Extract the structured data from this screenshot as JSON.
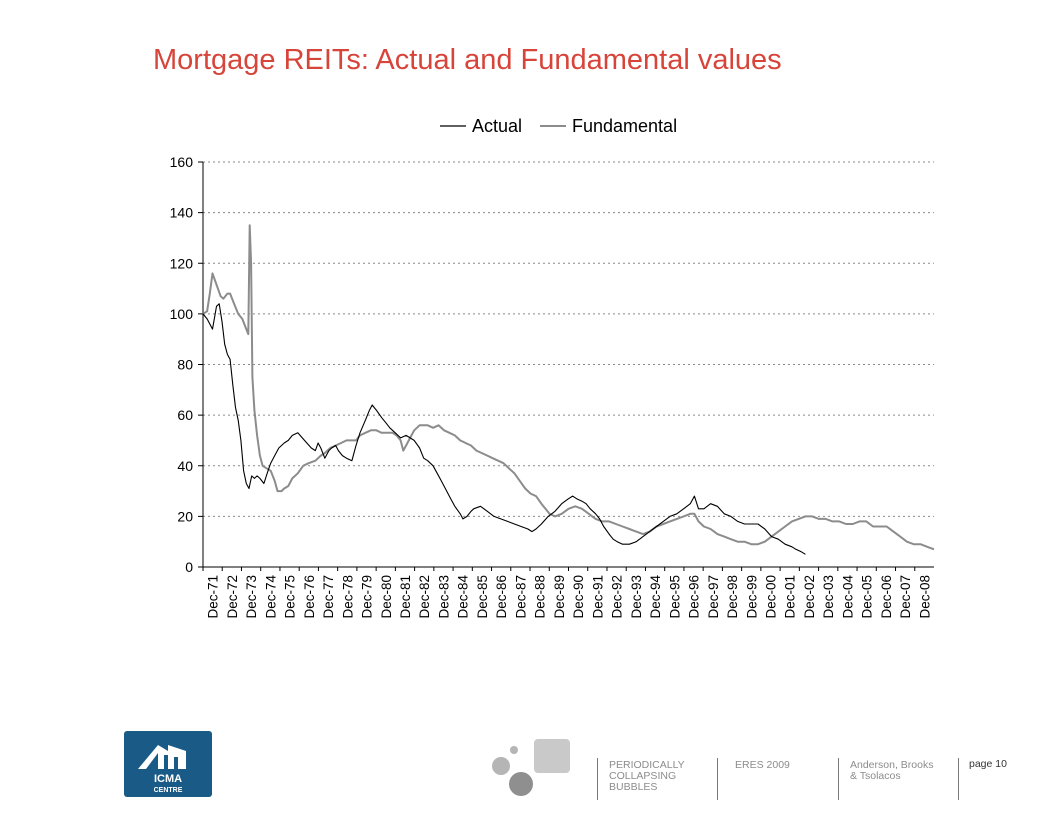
{
  "slide": {
    "title": "Mortgage REITs: Actual and Fundamental values",
    "title_color": "#d7443a"
  },
  "chart_data": {
    "type": "line",
    "title": "",
    "xlabel": "",
    "ylabel": "",
    "ylim": [
      0,
      160
    ],
    "yticks": [
      0,
      20,
      40,
      60,
      80,
      100,
      120,
      140,
      160
    ],
    "grid": "horizontal dotted",
    "legend": "top-center",
    "categories": [
      "Dec-71",
      "Dec-72",
      "Dec-73",
      "Dec-74",
      "Dec-75",
      "Dec-76",
      "Dec-77",
      "Dec-78",
      "Dec-79",
      "Dec-80",
      "Dec-81",
      "Dec-82",
      "Dec-83",
      "Dec-84",
      "Dec-85",
      "Dec-86",
      "Dec-87",
      "Dec-88",
      "Dec-89",
      "Dec-90",
      "Dec-91",
      "Dec-92",
      "Dec-93",
      "Dec-94",
      "Dec-95",
      "Dec-96",
      "Dec-97",
      "Dec-98",
      "Dec-99",
      "Dec-00",
      "Dec-01",
      "Dec-02",
      "Dec-03",
      "Dec-04",
      "Dec-05",
      "Dec-06",
      "Dec-07",
      "Dec-08"
    ],
    "series": [
      {
        "name": "Actual",
        "color": "#000000",
        "points": [
          [
            0,
            100
          ],
          [
            0.3,
            98
          ],
          [
            0.5,
            96
          ],
          [
            0.7,
            94
          ],
          [
            1.0,
            103
          ],
          [
            1.2,
            104
          ],
          [
            1.4,
            97
          ],
          [
            1.6,
            88
          ],
          [
            1.8,
            84
          ],
          [
            2.0,
            82
          ],
          [
            2.2,
            72
          ],
          [
            2.4,
            63
          ],
          [
            2.6,
            58
          ],
          [
            2.8,
            50
          ],
          [
            3.0,
            38
          ],
          [
            3.2,
            33
          ],
          [
            3.4,
            31
          ],
          [
            3.6,
            36
          ],
          [
            3.8,
            35
          ],
          [
            4.0,
            36
          ],
          [
            4.2,
            35
          ],
          [
            4.5,
            33
          ],
          [
            4.8,
            38
          ],
          [
            5.0,
            41
          ],
          [
            5.3,
            44
          ],
          [
            5.6,
            47
          ],
          [
            6.0,
            49
          ],
          [
            6.3,
            50
          ],
          [
            6.6,
            52
          ],
          [
            7.0,
            53
          ],
          [
            7.5,
            50
          ],
          [
            8.0,
            47
          ],
          [
            8.3,
            46
          ],
          [
            8.5,
            49
          ],
          [
            8.7,
            47
          ],
          [
            9.0,
            43
          ],
          [
            9.3,
            46
          ],
          [
            9.5,
            47
          ],
          [
            9.8,
            48
          ],
          [
            10.0,
            46
          ],
          [
            10.3,
            44
          ],
          [
            10.6,
            43
          ],
          [
            11.0,
            42
          ],
          [
            11.3,
            48
          ],
          [
            11.6,
            53
          ],
          [
            12.0,
            58
          ],
          [
            12.3,
            62
          ],
          [
            12.5,
            64
          ],
          [
            12.8,
            62
          ],
          [
            13.2,
            59
          ],
          [
            13.5,
            57
          ],
          [
            13.8,
            55
          ],
          [
            14.2,
            53
          ],
          [
            14.6,
            51
          ],
          [
            15.0,
            52
          ],
          [
            15.3,
            51
          ],
          [
            15.6,
            50
          ],
          [
            16.0,
            47
          ],
          [
            16.3,
            43
          ],
          [
            16.6,
            42
          ],
          [
            17.0,
            40
          ],
          [
            17.3,
            37
          ],
          [
            17.6,
            34
          ],
          [
            18.0,
            30
          ],
          [
            18.3,
            27
          ],
          [
            18.6,
            24
          ],
          [
            19.0,
            21
          ],
          [
            19.2,
            19
          ],
          [
            19.5,
            20
          ],
          [
            19.8,
            22
          ],
          [
            20.0,
            23
          ],
          [
            20.5,
            24
          ],
          [
            21.0,
            22
          ],
          [
            21.5,
            20
          ],
          [
            22.0,
            19
          ],
          [
            22.5,
            18
          ],
          [
            23.0,
            17
          ],
          [
            23.5,
            16
          ],
          [
            24.0,
            15
          ],
          [
            24.3,
            14
          ],
          [
            24.6,
            15
          ],
          [
            25.0,
            17
          ],
          [
            25.5,
            20
          ],
          [
            26.0,
            22
          ],
          [
            26.5,
            25
          ],
          [
            27.0,
            27
          ],
          [
            27.3,
            28
          ],
          [
            27.6,
            27
          ],
          [
            28.0,
            26
          ],
          [
            28.3,
            25
          ],
          [
            28.6,
            23
          ],
          [
            29.0,
            21
          ],
          [
            29.3,
            19
          ],
          [
            29.6,
            16
          ],
          [
            30.0,
            13
          ],
          [
            30.3,
            11
          ],
          [
            30.6,
            10
          ],
          [
            31.0,
            9
          ],
          [
            31.5,
            9
          ],
          [
            32.0,
            10
          ],
          [
            32.5,
            12
          ],
          [
            33.0,
            14
          ],
          [
            33.5,
            16
          ],
          [
            34.0,
            18
          ],
          [
            34.5,
            20
          ],
          [
            35.0,
            21
          ],
          [
            35.5,
            23
          ],
          [
            36.0,
            25
          ],
          [
            36.3,
            28
          ],
          [
            36.6,
            23
          ],
          [
            37.0,
            23
          ],
          [
            37.5,
            25
          ],
          [
            38.0,
            24
          ],
          [
            38.5,
            21
          ],
          [
            39.0,
            20
          ],
          [
            39.5,
            18
          ],
          [
            40.0,
            17
          ],
          [
            40.5,
            17
          ],
          [
            41.0,
            17
          ],
          [
            41.5,
            15
          ],
          [
            42.0,
            12
          ],
          [
            42.5,
            11
          ],
          [
            43.0,
            9
          ],
          [
            43.5,
            8
          ],
          [
            43.8,
            7
          ],
          [
            44.2,
            6
          ],
          [
            44.5,
            5
          ]
        ]
      },
      {
        "name": "Fundamental",
        "color": "#8c8c8c",
        "points": [
          [
            0,
            100
          ],
          [
            0.3,
            101
          ],
          [
            0.5,
            108
          ],
          [
            0.7,
            116
          ],
          [
            0.9,
            113
          ],
          [
            1.1,
            110
          ],
          [
            1.3,
            107
          ],
          [
            1.5,
            106
          ],
          [
            1.8,
            108
          ],
          [
            2.0,
            108
          ],
          [
            2.3,
            104
          ],
          [
            2.6,
            100
          ],
          [
            2.9,
            98
          ],
          [
            3.2,
            94
          ],
          [
            3.35,
            92
          ],
          [
            3.45,
            135
          ],
          [
            3.55,
            120
          ],
          [
            3.65,
            75
          ],
          [
            3.8,
            62
          ],
          [
            4.0,
            52
          ],
          [
            4.2,
            44
          ],
          [
            4.4,
            40
          ],
          [
            4.7,
            39
          ],
          [
            5.0,
            38
          ],
          [
            5.3,
            34
          ],
          [
            5.5,
            30
          ],
          [
            5.8,
            30
          ],
          [
            6.0,
            31
          ],
          [
            6.3,
            32
          ],
          [
            6.6,
            35
          ],
          [
            7.0,
            37
          ],
          [
            7.4,
            40
          ],
          [
            7.8,
            41
          ],
          [
            8.3,
            42
          ],
          [
            8.7,
            44
          ],
          [
            9.0,
            45
          ],
          [
            9.4,
            47
          ],
          [
            9.8,
            48
          ],
          [
            10.2,
            49
          ],
          [
            10.6,
            50
          ],
          [
            11.0,
            50
          ],
          [
            11.3,
            50
          ],
          [
            11.6,
            52
          ],
          [
            12.0,
            53
          ],
          [
            12.4,
            54
          ],
          [
            12.8,
            54
          ],
          [
            13.2,
            53
          ],
          [
            13.6,
            53
          ],
          [
            14.0,
            53
          ],
          [
            14.3,
            52
          ],
          [
            14.6,
            50
          ],
          [
            14.8,
            46
          ],
          [
            15.0,
            48
          ],
          [
            15.3,
            51
          ],
          [
            15.6,
            54
          ],
          [
            16.0,
            56
          ],
          [
            16.3,
            56
          ],
          [
            16.6,
            56
          ],
          [
            17.0,
            55
          ],
          [
            17.4,
            56
          ],
          [
            17.8,
            54
          ],
          [
            18.2,
            53
          ],
          [
            18.6,
            52
          ],
          [
            19.0,
            50
          ],
          [
            19.4,
            49
          ],
          [
            19.8,
            48
          ],
          [
            20.2,
            46
          ],
          [
            20.6,
            45
          ],
          [
            21.0,
            44
          ],
          [
            21.4,
            43
          ],
          [
            21.8,
            42
          ],
          [
            22.2,
            41
          ],
          [
            22.6,
            39
          ],
          [
            23.0,
            37
          ],
          [
            23.4,
            34
          ],
          [
            23.8,
            31
          ],
          [
            24.2,
            29
          ],
          [
            24.6,
            28
          ],
          [
            25.0,
            25
          ],
          [
            25.3,
            23
          ],
          [
            25.6,
            21
          ],
          [
            26.0,
            20
          ],
          [
            26.5,
            21
          ],
          [
            27.0,
            23
          ],
          [
            27.5,
            24
          ],
          [
            28.0,
            23
          ],
          [
            28.5,
            21
          ],
          [
            29.0,
            19
          ],
          [
            29.5,
            18
          ],
          [
            30.0,
            18
          ],
          [
            30.5,
            17
          ],
          [
            31.0,
            16
          ],
          [
            31.5,
            15
          ],
          [
            32.0,
            14
          ],
          [
            32.5,
            13
          ],
          [
            33.0,
            14
          ],
          [
            33.5,
            16
          ],
          [
            34.0,
            17
          ],
          [
            34.5,
            18
          ],
          [
            35.0,
            19
          ],
          [
            35.5,
            20
          ],
          [
            36.0,
            21
          ],
          [
            36.3,
            21
          ],
          [
            36.6,
            18
          ],
          [
            37.0,
            16
          ],
          [
            37.5,
            15
          ],
          [
            38.0,
            13
          ],
          [
            38.5,
            12
          ],
          [
            39.0,
            11
          ],
          [
            39.5,
            10
          ],
          [
            40.0,
            10
          ],
          [
            40.5,
            9
          ],
          [
            41.0,
            9
          ],
          [
            41.5,
            10
          ],
          [
            42.0,
            12
          ],
          [
            42.5,
            14
          ],
          [
            43.0,
            16
          ],
          [
            43.5,
            18
          ],
          [
            44.0,
            19
          ],
          [
            44.5,
            20
          ],
          [
            45.0,
            20
          ],
          [
            45.5,
            19
          ],
          [
            46.0,
            19
          ],
          [
            46.5,
            18
          ],
          [
            47.0,
            18
          ],
          [
            47.5,
            17
          ],
          [
            48.0,
            17
          ],
          [
            48.5,
            18
          ],
          [
            49.0,
            18
          ],
          [
            49.5,
            16
          ],
          [
            50.0,
            16
          ],
          [
            50.5,
            16
          ],
          [
            51.0,
            14
          ],
          [
            51.5,
            12
          ],
          [
            52.0,
            10
          ],
          [
            52.5,
            9
          ],
          [
            53.0,
            9
          ],
          [
            53.5,
            8
          ],
          [
            54.0,
            7
          ]
        ]
      }
    ]
  },
  "footer": {
    "logo_line1": "ICMA",
    "logo_line2": "CENTRE",
    "logo_color": "#1a5a86",
    "col1": [
      "PERIODICALLY",
      "COLLAPSING",
      "BUBBLES"
    ],
    "col2": "ERES 2009",
    "col3": [
      "Anderson, Brooks",
      "& Tsolacos"
    ],
    "page": "page 10"
  }
}
